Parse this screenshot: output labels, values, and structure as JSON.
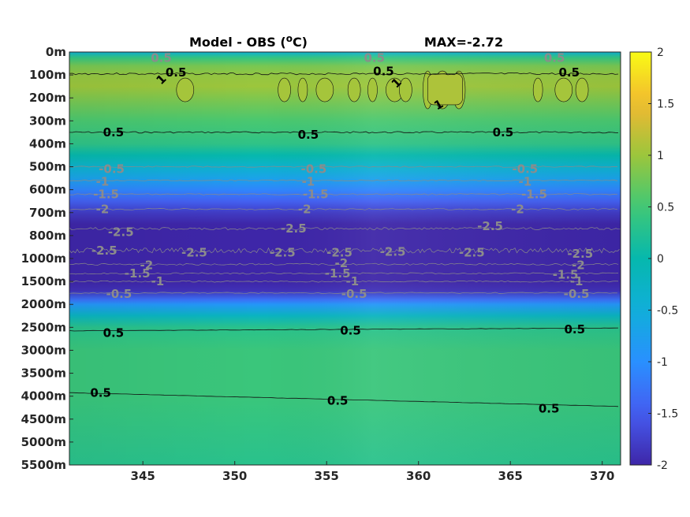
{
  "chart_data": {
    "type": "heatmap",
    "title_left": "Model - OBS (",
    "title_unit_sup": "o",
    "title_unit": "C)",
    "title_right": "MAX=-2.72",
    "x_ticks": [
      345,
      350,
      355,
      360,
      365,
      370
    ],
    "xlim": [
      341,
      371
    ],
    "y_tick_labels": [
      "0m",
      "100m",
      "200m",
      "300m",
      "400m",
      "500m",
      "600m",
      "700m",
      "800m",
      "1000m",
      "1500m",
      "2000m",
      "2500m",
      "3000m",
      "3500m",
      "4000m",
      "4500m",
      "5000m",
      "5500m"
    ],
    "colorbar": {
      "colormap": "parula",
      "clim": [
        -2,
        2
      ],
      "ticks": [
        2,
        1.5,
        1,
        0.5,
        0,
        -0.5,
        -1,
        -1.5,
        -2
      ],
      "tick_labels": [
        "2",
        "1.5",
        "1",
        "0.5",
        "0",
        "-0.5",
        "-1",
        "-1.5",
        "-2"
      ]
    },
    "depth_profile": {
      "y_index": [
        0,
        0.25,
        0.6,
        1,
        1.5,
        2,
        3,
        4,
        4.5,
        5,
        5.5,
        6,
        6.5,
        7,
        7.5,
        8,
        8.5,
        9,
        9.3,
        9.6,
        10,
        10.4,
        10.8,
        11,
        11.5,
        12,
        13,
        14,
        15,
        16,
        17,
        18
      ],
      "values": [
        -0.4,
        0.4,
        0.8,
        0.95,
        1.0,
        0.85,
        0.55,
        0.35,
        0.0,
        -0.35,
        -0.7,
        -1.1,
        -1.45,
        -1.8,
        -2.05,
        -2.3,
        -2.5,
        -2.6,
        -2.72,
        -2.6,
        -2.4,
        -1.9,
        -1.3,
        -0.9,
        -0.2,
        0.3,
        0.45,
        0.45,
        0.45,
        0.4,
        0.35,
        0.3
      ]
    },
    "contour_labels": [
      {
        "text": "0.5",
        "x": 346.8,
        "y_index": 0.9,
        "color": "black",
        "angle": 0
      },
      {
        "text": "1",
        "x": 346.0,
        "y_index": 1.2,
        "color": "black",
        "angle": -45
      },
      {
        "text": "0.5",
        "x": 358.1,
        "y_index": 0.85,
        "color": "black",
        "angle": 0
      },
      {
        "text": "1",
        "x": 358.8,
        "y_index": 1.35,
        "color": "black",
        "angle": -45
      },
      {
        "text": "1",
        "x": 361.1,
        "y_index": 2.3,
        "color": "black",
        "angle": -30
      },
      {
        "text": "0.5",
        "x": 368.2,
        "y_index": 0.9,
        "color": "black",
        "angle": 0
      },
      {
        "text": "0.5",
        "x": 343.4,
        "y_index": 3.5,
        "color": "black",
        "angle": 0
      },
      {
        "text": "0.5",
        "x": 354.0,
        "y_index": 3.6,
        "color": "black",
        "angle": 0
      },
      {
        "text": "0.5",
        "x": 364.6,
        "y_index": 3.5,
        "color": "black",
        "angle": 0
      },
      {
        "text": "0.5",
        "x": 346.0,
        "y_index": 0.25,
        "color": "gray",
        "angle": 0
      },
      {
        "text": "0.5",
        "x": 357.6,
        "y_index": 0.25,
        "color": "gray",
        "angle": 0
      },
      {
        "text": "0.5",
        "x": 367.4,
        "y_index": 0.25,
        "color": "gray",
        "angle": 0
      },
      {
        "text": "-0.5",
        "x": 343.3,
        "y_index": 5.1,
        "color": "gray",
        "angle": 0
      },
      {
        "text": "-0.5",
        "x": 354.3,
        "y_index": 5.1,
        "color": "gray",
        "angle": 0
      },
      {
        "text": "-0.5",
        "x": 365.8,
        "y_index": 5.1,
        "color": "gray",
        "angle": 0
      },
      {
        "text": "-1",
        "x": 342.8,
        "y_index": 5.65,
        "color": "gray",
        "angle": 0
      },
      {
        "text": "-1",
        "x": 354.0,
        "y_index": 5.65,
        "color": "gray",
        "angle": 0
      },
      {
        "text": "-1",
        "x": 365.8,
        "y_index": 5.65,
        "color": "gray",
        "angle": 0
      },
      {
        "text": "-1.5",
        "x": 343.0,
        "y_index": 6.2,
        "color": "gray",
        "angle": 0
      },
      {
        "text": "-1.5",
        "x": 354.4,
        "y_index": 6.2,
        "color": "gray",
        "angle": 0
      },
      {
        "text": "-1.5",
        "x": 366.3,
        "y_index": 6.2,
        "color": "gray",
        "angle": 0
      },
      {
        "text": "-2",
        "x": 342.8,
        "y_index": 6.85,
        "color": "gray",
        "angle": 0
      },
      {
        "text": "-2",
        "x": 353.8,
        "y_index": 6.85,
        "color": "gray",
        "angle": 0
      },
      {
        "text": "-2",
        "x": 365.4,
        "y_index": 6.85,
        "color": "gray",
        "angle": 0
      },
      {
        "text": "-2.5",
        "x": 343.8,
        "y_index": 7.85,
        "color": "gray",
        "angle": 0
      },
      {
        "text": "-2.5",
        "x": 353.2,
        "y_index": 7.7,
        "color": "gray",
        "angle": 0
      },
      {
        "text": "-2.5",
        "x": 363.9,
        "y_index": 7.6,
        "color": "gray",
        "angle": 0
      },
      {
        "text": "-2.5",
        "x": 342.9,
        "y_index": 8.65,
        "color": "gray",
        "angle": 0
      },
      {
        "text": "-2.5",
        "x": 347.8,
        "y_index": 8.75,
        "color": "gray",
        "angle": 0
      },
      {
        "text": "-2.5",
        "x": 355.7,
        "y_index": 8.75,
        "color": "gray",
        "angle": 0
      },
      {
        "text": "-2.5",
        "x": 352.6,
        "y_index": 8.75,
        "color": "gray",
        "angle": 0
      },
      {
        "text": "-2.5",
        "x": 358.6,
        "y_index": 8.7,
        "color": "gray",
        "angle": 0
      },
      {
        "text": "-2.5",
        "x": 362.9,
        "y_index": 8.75,
        "color": "gray",
        "angle": 0
      },
      {
        "text": "-2.5",
        "x": 368.8,
        "y_index": 8.8,
        "color": "gray",
        "angle": 0
      },
      {
        "text": "-2",
        "x": 345.2,
        "y_index": 9.3,
        "color": "gray",
        "angle": 0
      },
      {
        "text": "-2",
        "x": 355.8,
        "y_index": 9.2,
        "color": "gray",
        "angle": 0
      },
      {
        "text": "-2",
        "x": 368.7,
        "y_index": 9.3,
        "color": "gray",
        "angle": 0
      },
      {
        "text": "-1.5",
        "x": 344.7,
        "y_index": 9.65,
        "color": "gray",
        "angle": 0
      },
      {
        "text": "-1.5",
        "x": 355.6,
        "y_index": 9.65,
        "color": "gray",
        "angle": 0
      },
      {
        "text": "-1.5",
        "x": 368.0,
        "y_index": 9.7,
        "color": "gray",
        "angle": 0
      },
      {
        "text": "-1",
        "x": 345.8,
        "y_index": 10.0,
        "color": "gray",
        "angle": 0
      },
      {
        "text": "-1",
        "x": 356.4,
        "y_index": 10.0,
        "color": "gray",
        "angle": 0
      },
      {
        "text": "-1",
        "x": 368.6,
        "y_index": 10.0,
        "color": "gray",
        "angle": 0
      },
      {
        "text": "-0.5",
        "x": 343.7,
        "y_index": 10.55,
        "color": "gray",
        "angle": 0
      },
      {
        "text": "-0.5",
        "x": 356.5,
        "y_index": 10.55,
        "color": "gray",
        "angle": 0
      },
      {
        "text": "-0.5",
        "x": 368.6,
        "y_index": 10.55,
        "color": "gray",
        "angle": 0
      },
      {
        "text": "0.5",
        "x": 343.4,
        "y_index": 12.25,
        "color": "black",
        "angle": 0
      },
      {
        "text": "0.5",
        "x": 356.3,
        "y_index": 12.15,
        "color": "black",
        "angle": 0
      },
      {
        "text": "0.5",
        "x": 368.5,
        "y_index": 12.1,
        "color": "black",
        "angle": 0
      },
      {
        "text": "0.5",
        "x": 342.7,
        "y_index": 14.85,
        "color": "black",
        "angle": 0
      },
      {
        "text": "0.5",
        "x": 355.6,
        "y_index": 15.2,
        "color": "black",
        "angle": 0
      },
      {
        "text": "0.5",
        "x": 367.1,
        "y_index": 15.55,
        "color": "black",
        "angle": 0
      }
    ]
  }
}
